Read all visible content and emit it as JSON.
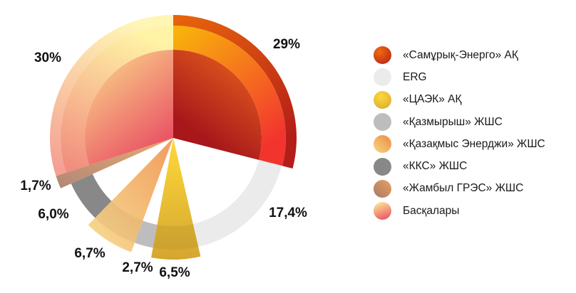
{
  "chart_data": {
    "type": "pie",
    "title": "",
    "categories": [
      "«Самұрық-Энерго» АҚ",
      "ERG",
      "«ЦАЭК» АҚ",
      "«Қазмырыш» ЖШС",
      "«Қазақмыс Энерджи» ЖШС",
      "«ККС» ЖШС",
      "«Жамбыл ГРЭС» ЖШС",
      "Басқалары"
    ],
    "values": [
      29,
      17.4,
      6.5,
      2.7,
      6.7,
      6.0,
      1.7,
      30
    ],
    "value_labels": [
      "29%",
      "17,4%",
      "6,5%",
      "2,7%",
      "6,7%",
      "6,0%",
      "1,7%",
      "30%"
    ],
    "colors": [
      "#c8361a",
      "#ebebeb",
      "#f5c52a",
      "#bdbdbd",
      "#f2a85a",
      "#888888",
      "#c08a68",
      "#f7b07a"
    ],
    "legend_position": "right"
  }
}
